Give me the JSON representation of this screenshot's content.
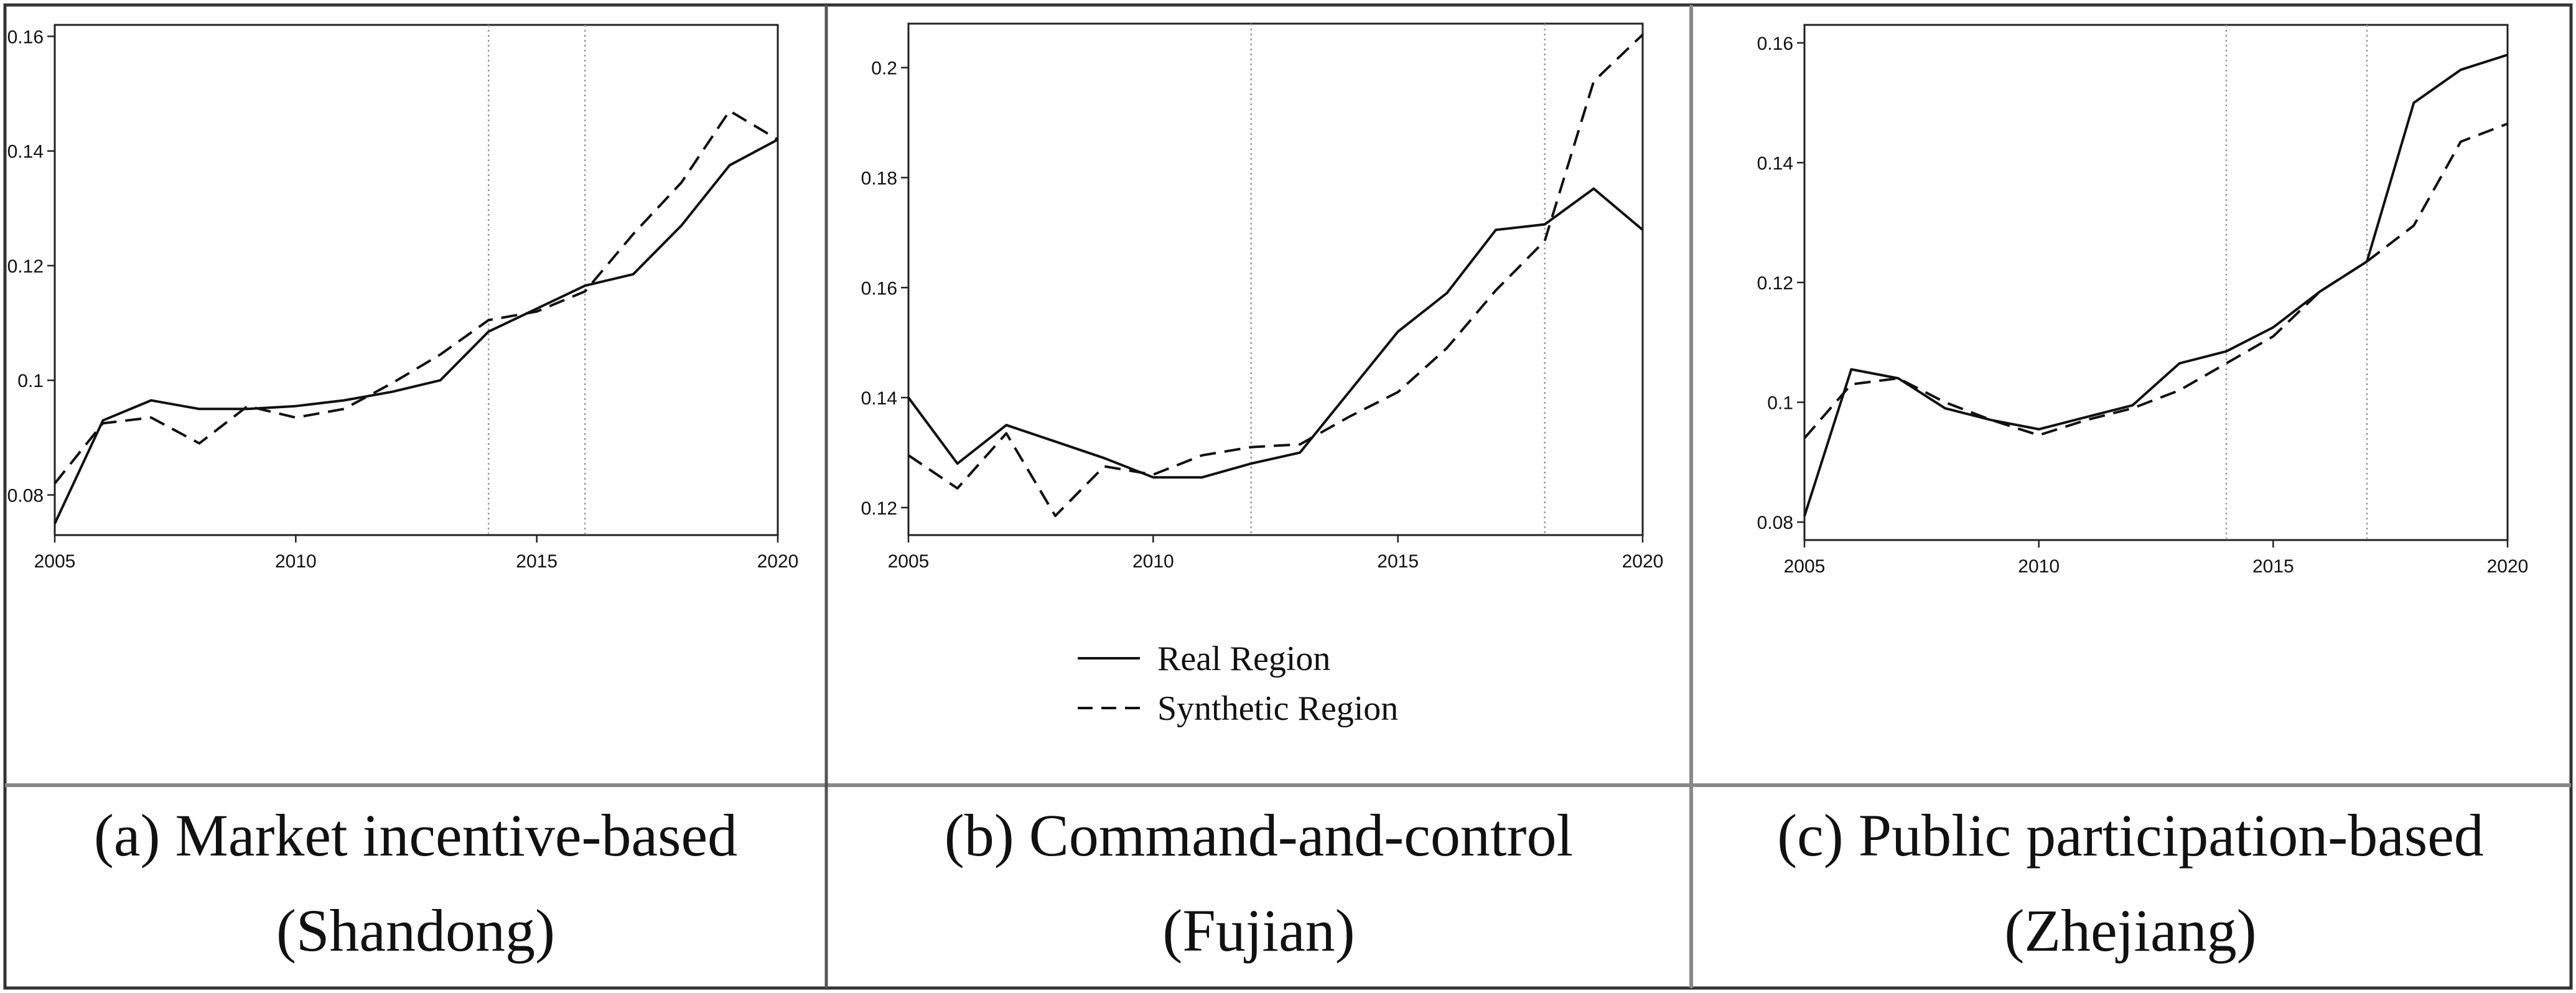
{
  "figure": {
    "panels": [
      {
        "caption_line1": "(a) Market incentive-based",
        "caption_line2": "(Shandong)"
      },
      {
        "caption_line1": "(b) Command-and-control",
        "caption_line2": "(Fujian)"
      },
      {
        "caption_line1": "(c) Public participation-based",
        "caption_line2": "(Zhejiang)"
      }
    ],
    "legend": {
      "real_label": "Real Region",
      "synthetic_label": "Synthetic Region"
    }
  },
  "chart_data": [
    {
      "type": "line",
      "title": "",
      "xlabel": "",
      "ylabel": "",
      "xlim": [
        2005,
        2020
      ],
      "ylim": [
        0.073,
        0.162
      ],
      "xticks": [
        2005,
        2010,
        2015,
        2020
      ],
      "xtick_labels": [
        "2005",
        "2010",
        "2015",
        "2020"
      ],
      "yticks": [
        0.08,
        0.1,
        0.12,
        0.14,
        0.16
      ],
      "ytick_labels": [
        "0.08",
        "0.1",
        "0.12",
        "0.14",
        "0.16"
      ],
      "vlines": [
        2014,
        2016
      ],
      "grid": false,
      "x": [
        2005,
        2006,
        2007,
        2008,
        2009,
        2010,
        2011,
        2012,
        2013,
        2014,
        2015,
        2016,
        2017,
        2018,
        2019,
        2020
      ],
      "series": [
        {
          "name": "Real Region",
          "style": "solid",
          "values": [
            0.075,
            0.093,
            0.0965,
            0.095,
            0.095,
            0.0955,
            0.0965,
            0.098,
            0.1,
            0.1085,
            0.1125,
            0.1165,
            0.1185,
            0.127,
            0.1375,
            0.142
          ]
        },
        {
          "name": "Synthetic Region",
          "style": "dashed",
          "values": [
            0.082,
            0.0925,
            0.0935,
            0.089,
            0.0955,
            0.0935,
            0.095,
            0.0995,
            0.1045,
            0.1105,
            0.112,
            0.1155,
            0.1255,
            0.1345,
            0.147,
            0.142
          ]
        }
      ]
    },
    {
      "type": "line",
      "title": "",
      "xlabel": "",
      "ylabel": "",
      "xlim": [
        2005,
        2020
      ],
      "ylim": [
        0.115,
        0.208
      ],
      "xticks": [
        2005,
        2010,
        2015,
        2020
      ],
      "xtick_labels": [
        "2005",
        "2010",
        "2015",
        "2020"
      ],
      "yticks": [
        0.12,
        0.14,
        0.16,
        0.18,
        0.2
      ],
      "ytick_labels": [
        "0.12",
        "0.14",
        "0.16",
        "0.18",
        "0.2"
      ],
      "vlines": [
        2012,
        2018
      ],
      "grid": false,
      "legend_position": "below plot",
      "x": [
        2005,
        2006,
        2007,
        2008,
        2009,
        2010,
        2011,
        2012,
        2013,
        2014,
        2015,
        2016,
        2017,
        2018,
        2019,
        2020
      ],
      "series": [
        {
          "name": "Real Region",
          "style": "solid",
          "values": [
            0.14,
            0.128,
            0.135,
            0.132,
            0.129,
            0.1255,
            0.1255,
            0.128,
            0.13,
            0.141,
            0.152,
            0.159,
            0.1705,
            0.1715,
            0.178,
            0.1705
          ]
        },
        {
          "name": "Synthetic Region",
          "style": "dashed",
          "values": [
            0.1295,
            0.1235,
            0.1335,
            0.1185,
            0.1275,
            0.126,
            0.1295,
            0.131,
            0.1315,
            0.1365,
            0.141,
            0.149,
            0.1595,
            0.1685,
            0.1975,
            0.206
          ]
        }
      ]
    },
    {
      "type": "line",
      "title": "",
      "xlabel": "",
      "ylabel": "",
      "xlim": [
        2005,
        2020
      ],
      "ylim": [
        0.077,
        0.163
      ],
      "xticks": [
        2005,
        2010,
        2015,
        2020
      ],
      "xtick_labels": [
        "2005",
        "2010",
        "2015",
        "2020"
      ],
      "yticks": [
        0.08,
        0.1,
        0.12,
        0.14,
        0.16
      ],
      "ytick_labels": [
        "0.08",
        "0.1",
        "0.12",
        "0.14",
        "0.16"
      ],
      "vlines": [
        2014,
        2017
      ],
      "grid": false,
      "x": [
        2005,
        2006,
        2007,
        2008,
        2009,
        2010,
        2011,
        2012,
        2013,
        2014,
        2015,
        2016,
        2017,
        2018,
        2019,
        2020
      ],
      "series": [
        {
          "name": "Real Region",
          "style": "solid",
          "values": [
            0.081,
            0.1055,
            0.104,
            0.099,
            0.097,
            0.0955,
            0.0975,
            0.0995,
            0.1065,
            0.1085,
            0.1125,
            0.1185,
            0.1235,
            0.15,
            0.1555,
            0.158
          ]
        },
        {
          "name": "Synthetic Region",
          "style": "dashed",
          "values": [
            0.094,
            0.103,
            0.104,
            0.1,
            0.097,
            0.0945,
            0.097,
            0.099,
            0.102,
            0.1065,
            0.111,
            0.1185,
            0.1235,
            0.1295,
            0.1435,
            0.1465
          ]
        }
      ]
    }
  ]
}
